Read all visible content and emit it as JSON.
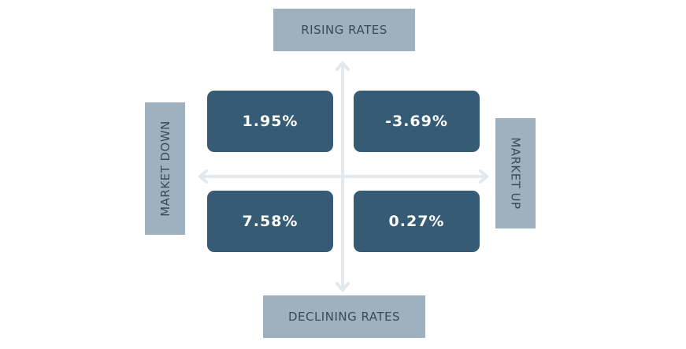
{
  "axes": {
    "top_label": "RISING RATES",
    "bottom_label": "DECLINING RATES",
    "left_label": "MARKET DOWN",
    "right_label": "MARKET UP"
  },
  "quadrants": {
    "top_left": "1.95%",
    "top_right": "-3.69%",
    "bottom_left": "7.58%",
    "bottom_right": "0.27%"
  },
  "colors": {
    "quadrant_fill": "#365c75",
    "label_fill": "#9fb1bf",
    "label_text": "#3d4a55",
    "axis_line": "#e3e8ec"
  }
}
